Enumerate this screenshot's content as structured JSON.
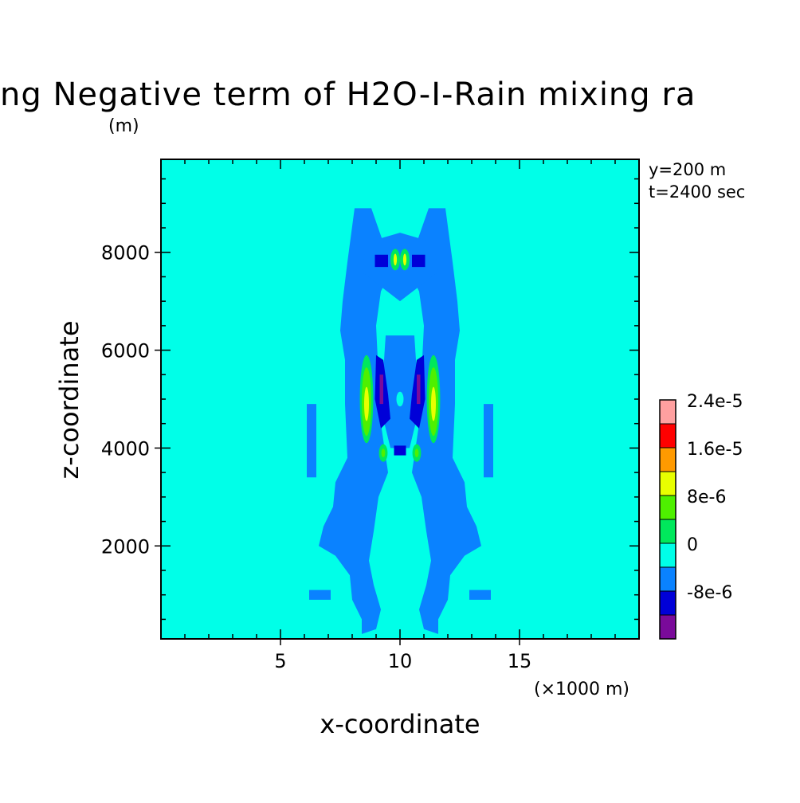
{
  "chart_data": {
    "type": "heatmap",
    "title": "ng Negative term of H2O-I-Rain mixing ra",
    "units_label": "(m)",
    "info_lines": [
      "y=200 m",
      "t=2400 sec"
    ],
    "xlabel": "x-coordinate",
    "ylabel": "z-coordinate",
    "x_unit_label": "(×1000 m)",
    "xlim": [
      0,
      20
    ],
    "ylim": [
      100,
      9900
    ],
    "x_ticks": [
      {
        "v": 5,
        "label": "5"
      },
      {
        "v": 10,
        "label": "10"
      },
      {
        "v": 15,
        "label": "15"
      }
    ],
    "y_ticks": [
      {
        "v": 2000,
        "label": "2000"
      },
      {
        "v": 4000,
        "label": "4000"
      },
      {
        "v": 6000,
        "label": "6000"
      },
      {
        "v": 8000,
        "label": "8000"
      }
    ],
    "colorbar": {
      "levels": [
        "#7a0a9a",
        "#0000d8",
        "#0a82ff",
        "#00ffe8",
        "#00e85c",
        "#4ef000",
        "#e8ff00",
        "#ff9a00",
        "#ff0000",
        "#ffa0a0"
      ],
      "labels": [
        {
          "index": 1,
          "label": "-8e-6"
        },
        {
          "index": 3,
          "label": "0"
        },
        {
          "index": 5,
          "label": "8e-6"
        },
        {
          "index": 7,
          "label": "1.6e-5"
        },
        {
          "index": 9,
          "label": "2.4e-5"
        }
      ]
    },
    "regions": [
      {
        "name": "left-outer-plume",
        "color": "#0a82ff",
        "points": [
          [
            8.1,
            8.9
          ],
          [
            8.8,
            8.9
          ],
          [
            9.3,
            8.2
          ],
          [
            9.5,
            7.5
          ],
          [
            9.2,
            7.2
          ],
          [
            9.0,
            6.5
          ],
          [
            9.2,
            4.5
          ],
          [
            9.5,
            3.5
          ],
          [
            9.1,
            3.0
          ],
          [
            8.9,
            2.3
          ],
          [
            8.7,
            1.7
          ],
          [
            8.9,
            1.2
          ],
          [
            9.2,
            0.7
          ],
          [
            9.0,
            0.3
          ],
          [
            8.4,
            0.2
          ],
          [
            8.4,
            0.5
          ],
          [
            8.0,
            0.9
          ],
          [
            7.9,
            1.4
          ],
          [
            7.3,
            1.8
          ],
          [
            6.6,
            2.0
          ],
          [
            6.8,
            2.4
          ],
          [
            7.2,
            2.8
          ],
          [
            7.3,
            3.3
          ],
          [
            7.8,
            3.8
          ],
          [
            7.7,
            4.9
          ],
          [
            7.7,
            5.8
          ],
          [
            7.5,
            6.4
          ],
          [
            7.6,
            7.0
          ],
          [
            7.8,
            7.8
          ]
        ]
      },
      {
        "name": "right-outer-plume",
        "color": "#0a82ff",
        "points": [
          [
            11.9,
            8.9
          ],
          [
            11.2,
            8.9
          ],
          [
            10.7,
            8.2
          ],
          [
            10.5,
            7.5
          ],
          [
            10.8,
            7.2
          ],
          [
            11.0,
            6.5
          ],
          [
            10.8,
            4.5
          ],
          [
            10.5,
            3.5
          ],
          [
            10.9,
            3.0
          ],
          [
            11.1,
            2.3
          ],
          [
            11.3,
            1.7
          ],
          [
            11.1,
            1.2
          ],
          [
            10.8,
            0.7
          ],
          [
            11.0,
            0.3
          ],
          [
            11.6,
            0.2
          ],
          [
            11.6,
            0.5
          ],
          [
            12.0,
            0.9
          ],
          [
            12.1,
            1.4
          ],
          [
            12.7,
            1.8
          ],
          [
            13.4,
            2.0
          ],
          [
            13.2,
            2.4
          ],
          [
            12.8,
            2.8
          ],
          [
            12.7,
            3.3
          ],
          [
            12.2,
            3.8
          ],
          [
            12.3,
            4.9
          ],
          [
            12.3,
            5.8
          ],
          [
            12.5,
            6.4
          ],
          [
            12.4,
            7.0
          ],
          [
            12.2,
            7.8
          ]
        ]
      },
      {
        "name": "top-cap",
        "color": "#0a82ff",
        "points": [
          [
            8.6,
            8.2
          ],
          [
            10.0,
            8.4
          ],
          [
            11.4,
            8.2
          ],
          [
            11.6,
            7.6
          ],
          [
            10.0,
            7.0
          ],
          [
            8.4,
            7.6
          ]
        ]
      },
      {
        "name": "left-flank",
        "color": "#0a82ff",
        "points": [
          [
            6.1,
            4.9
          ],
          [
            6.5,
            4.9
          ],
          [
            6.5,
            3.4
          ],
          [
            6.1,
            3.4
          ]
        ]
      },
      {
        "name": "right-flank",
        "color": "#0a82ff",
        "points": [
          [
            13.5,
            4.9
          ],
          [
            13.9,
            4.9
          ],
          [
            13.9,
            3.4
          ],
          [
            13.5,
            3.4
          ]
        ]
      },
      {
        "name": "left-low-streak",
        "color": "#0a82ff",
        "points": [
          [
            6.2,
            1.1
          ],
          [
            7.1,
            1.1
          ],
          [
            7.1,
            0.9
          ],
          [
            6.2,
            0.9
          ]
        ]
      },
      {
        "name": "right-low-streak",
        "color": "#0a82ff",
        "points": [
          [
            12.9,
            1.1
          ],
          [
            13.8,
            1.1
          ],
          [
            13.8,
            0.9
          ],
          [
            12.9,
            0.9
          ]
        ]
      },
      {
        "name": "center-inner",
        "color": "#0a82ff",
        "points": [
          [
            9.4,
            6.3
          ],
          [
            10.6,
            6.3
          ],
          [
            10.8,
            4.8
          ],
          [
            10.4,
            4.0
          ],
          [
            9.6,
            4.0
          ],
          [
            9.2,
            4.8
          ]
        ]
      },
      {
        "name": "top-neg-left",
        "color": "#0000d8",
        "points": [
          [
            8.95,
            7.95
          ],
          [
            9.5,
            7.95
          ],
          [
            9.5,
            7.7
          ],
          [
            8.95,
            7.7
          ]
        ]
      },
      {
        "name": "top-neg-right",
        "color": "#0000d8",
        "points": [
          [
            10.5,
            7.95
          ],
          [
            11.05,
            7.95
          ],
          [
            11.05,
            7.7
          ],
          [
            10.5,
            7.7
          ]
        ]
      },
      {
        "name": "left-core-neg",
        "color": "#0000d8",
        "points": [
          [
            9.0,
            5.9
          ],
          [
            9.3,
            5.8
          ],
          [
            9.5,
            5.1
          ],
          [
            9.6,
            4.6
          ],
          [
            9.2,
            4.4
          ],
          [
            8.95,
            5.0
          ]
        ]
      },
      {
        "name": "right-core-neg",
        "color": "#0000d8",
        "points": [
          [
            11.0,
            5.9
          ],
          [
            10.7,
            5.8
          ],
          [
            10.5,
            5.1
          ],
          [
            10.4,
            4.6
          ],
          [
            10.8,
            4.4
          ],
          [
            11.05,
            5.0
          ]
        ]
      },
      {
        "name": "bottom-neg",
        "color": "#0000d8",
        "points": [
          [
            9.75,
            4.05
          ],
          [
            10.25,
            4.05
          ],
          [
            10.25,
            3.85
          ],
          [
            9.75,
            3.85
          ]
        ]
      },
      {
        "name": "left-core-min",
        "color": "#7a0a9a",
        "points": [
          [
            9.15,
            5.5
          ],
          [
            9.3,
            5.5
          ],
          [
            9.3,
            4.9
          ],
          [
            9.15,
            4.9
          ]
        ]
      },
      {
        "name": "right-core-min",
        "color": "#7a0a9a",
        "points": [
          [
            10.7,
            5.5
          ],
          [
            10.85,
            5.5
          ],
          [
            10.85,
            4.9
          ],
          [
            10.7,
            4.9
          ]
        ]
      }
    ],
    "ellipses": [
      {
        "name": "top-pos-left",
        "color": "#00e85c",
        "cx": 9.8,
        "cy": 7.85,
        "rx": 0.2,
        "ry": 0.22
      },
      {
        "name": "top-pos-left-core",
        "color": "#e8ff00",
        "cx": 9.8,
        "cy": 7.85,
        "rx": 0.07,
        "ry": 0.12
      },
      {
        "name": "top-pos-right",
        "color": "#00e85c",
        "cx": 10.2,
        "cy": 7.85,
        "rx": 0.2,
        "ry": 0.22
      },
      {
        "name": "top-pos-right-core",
        "color": "#e8ff00",
        "cx": 10.2,
        "cy": 7.85,
        "rx": 0.07,
        "ry": 0.12
      },
      {
        "name": "left-pos",
        "color": "#00e85c",
        "cx": 8.6,
        "cy": 5.0,
        "rx": 0.28,
        "ry": 0.9
      },
      {
        "name": "left-pos-mid",
        "color": "#4ef000",
        "cx": 8.6,
        "cy": 4.95,
        "rx": 0.2,
        "ry": 0.7
      },
      {
        "name": "left-pos-core",
        "color": "#e8ff00",
        "cx": 8.6,
        "cy": 4.9,
        "rx": 0.1,
        "ry": 0.35
      },
      {
        "name": "right-pos",
        "color": "#00e85c",
        "cx": 11.4,
        "cy": 5.0,
        "rx": 0.28,
        "ry": 0.9
      },
      {
        "name": "right-pos-mid",
        "color": "#4ef000",
        "cx": 11.4,
        "cy": 4.95,
        "rx": 0.2,
        "ry": 0.7
      },
      {
        "name": "right-pos-core",
        "color": "#e8ff00",
        "cx": 11.4,
        "cy": 4.9,
        "rx": 0.1,
        "ry": 0.35
      },
      {
        "name": "bottom-pos-left",
        "color": "#00e85c",
        "cx": 9.3,
        "cy": 3.9,
        "rx": 0.18,
        "ry": 0.18
      },
      {
        "name": "bottom-pos-left-core",
        "color": "#4ef000",
        "cx": 9.3,
        "cy": 3.9,
        "rx": 0.08,
        "ry": 0.09
      },
      {
        "name": "bottom-pos-right",
        "color": "#00e85c",
        "cx": 10.7,
        "cy": 3.9,
        "rx": 0.18,
        "ry": 0.18
      },
      {
        "name": "bottom-pos-right-core",
        "color": "#4ef000",
        "cx": 10.7,
        "cy": 3.9,
        "rx": 0.08,
        "ry": 0.09
      },
      {
        "name": "center-dot",
        "color": "#00ffe8",
        "cx": 10.0,
        "cy": 5.0,
        "rx": 0.15,
        "ry": 0.15
      }
    ]
  }
}
